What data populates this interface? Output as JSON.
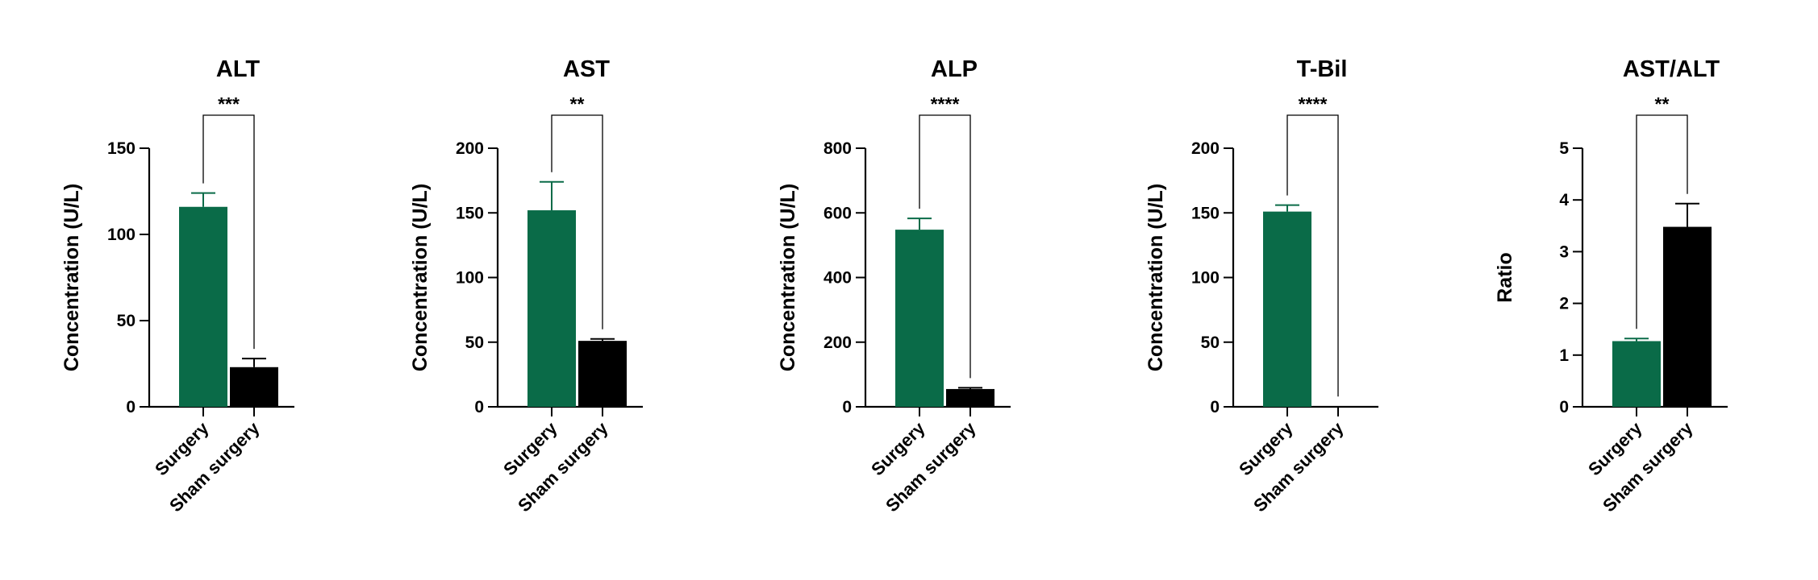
{
  "colors": {
    "surgery": "#0a6b48",
    "sham": "#000000",
    "axis": "#000000"
  },
  "chart_data": [
    {
      "type": "bar",
      "title": "ALT",
      "ylabel": "Concentration (U/L)",
      "categories": [
        "Surgery",
        "Sham surgery"
      ],
      "values": [
        116,
        23
      ],
      "errors": [
        8,
        5
      ],
      "ylim": [
        0,
        150
      ],
      "yticks": [
        "0",
        "50",
        "100",
        "150"
      ],
      "significance": "***",
      "grid": false
    },
    {
      "type": "bar",
      "title": "AST",
      "ylabel": "Concentration (U/L)",
      "categories": [
        "Surgery",
        "Sham surgery"
      ],
      "values": [
        152,
        51
      ],
      "errors": [
        22,
        1.5
      ],
      "ylim": [
        0,
        200
      ],
      "yticks": [
        "0",
        "50",
        "100",
        "150",
        "200"
      ],
      "significance": "**",
      "grid": false
    },
    {
      "type": "bar",
      "title": "ALP",
      "ylabel": "Concentration (U/L)",
      "categories": [
        "Surgery",
        "Sham surgery"
      ],
      "values": [
        548,
        55
      ],
      "errors": [
        35,
        4
      ],
      "ylim": [
        0,
        800
      ],
      "yticks": [
        "0",
        "200",
        "400",
        "600",
        "800"
      ],
      "significance": "****",
      "grid": false
    },
    {
      "type": "bar",
      "title": "T-Bil",
      "ylabel": "Concentration (U/L)",
      "categories": [
        "Surgery",
        "Sham surgery"
      ],
      "values": [
        151,
        0.5
      ],
      "errors": [
        5,
        0
      ],
      "ylim": [
        0,
        200
      ],
      "yticks": [
        "0",
        "50",
        "100",
        "150",
        "200"
      ],
      "significance": "****",
      "grid": false
    },
    {
      "type": "bar",
      "title": "AST/ALT",
      "ylabel": "Ratio",
      "categories": [
        "Surgery",
        "Sham surgery"
      ],
      "values": [
        1.27,
        3.48
      ],
      "errors": [
        0.05,
        0.45
      ],
      "ylim": [
        0,
        5
      ],
      "yticks": [
        "0",
        "1",
        "2",
        "3",
        "4",
        "5"
      ],
      "significance": "**",
      "grid": false
    }
  ]
}
